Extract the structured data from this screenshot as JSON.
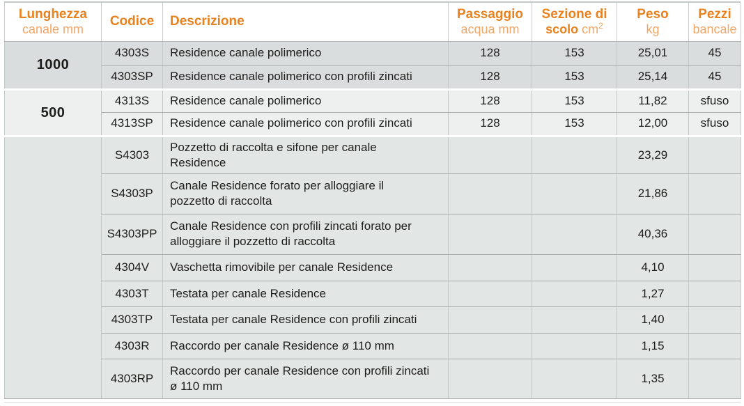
{
  "colors": {
    "accent_bold": "#E8821F",
    "accent_light": "#F0A769",
    "row_dark": "#D9DDDD",
    "row_light": "#EEF0F0",
    "row_bottom": "#E2E6E5",
    "grid_line": "#A9AEAE",
    "text": "#1D1D1B"
  },
  "header": {
    "lunghezza": {
      "title": "Lunghezza",
      "subtitle": "canale mm"
    },
    "codice": {
      "title": "Codice"
    },
    "descrizione": {
      "title": "Descrizione"
    },
    "passaggio": {
      "title": "Passaggio",
      "subtitle": "acqua mm"
    },
    "sezione": {
      "title": "Sezione di",
      "title2": "scolo",
      "unit_base": "cm",
      "unit_exp": "2"
    },
    "peso": {
      "title": "Peso",
      "subtitle": "kg"
    },
    "pezzi": {
      "title": "Pezzi",
      "subtitle": "bancale"
    }
  },
  "rows": [
    {
      "group": "1000",
      "code": "4303S",
      "desc": "Residence canale polimerico",
      "passaggio": "128",
      "sezione": "153",
      "peso": "25,01",
      "pezzi": "45"
    },
    {
      "code": "4303SP",
      "desc": "Residence canale polimerico con profili zincati",
      "passaggio": "128",
      "sezione": "153",
      "peso": "25,14",
      "pezzi": "45"
    },
    {
      "group": "500",
      "code": "4313S",
      "desc": "Residence canale polimerico",
      "passaggio": "128",
      "sezione": "153",
      "peso": "11,82",
      "pezzi": "sfuso"
    },
    {
      "code": "4313SP",
      "desc": "Residence canale polimerico con profili zincati",
      "passaggio": "128",
      "sezione": "153",
      "peso": "12,00",
      "pezzi": "sfuso"
    },
    {
      "group": "",
      "code": "S4303",
      "desc": "Pozzetto di raccolta e sifone per canale Residence",
      "passaggio": "",
      "sezione": "",
      "peso": "23,29",
      "pezzi": ""
    },
    {
      "code": "S4303P",
      "desc": "Canale Residence forato per alloggiare il pozzetto di raccolta",
      "passaggio": "",
      "sezione": "",
      "peso": "21,86",
      "pezzi": ""
    },
    {
      "code": "S4303PP",
      "desc": "Canale Residence con profili zincati forato per alloggiare il pozzetto di raccolta",
      "passaggio": "",
      "sezione": "",
      "peso": "40,36",
      "pezzi": ""
    },
    {
      "code": "4304V",
      "desc": "Vaschetta rimovibile per canale Residence",
      "passaggio": "",
      "sezione": "",
      "peso": "4,10",
      "pezzi": ""
    },
    {
      "code": "4303T",
      "desc": "Testata per canale Residence",
      "passaggio": "",
      "sezione": "",
      "peso": "1,27",
      "pezzi": ""
    },
    {
      "code": "4303TP",
      "desc": "Testata per canale Residence con profili zincati",
      "passaggio": "",
      "sezione": "",
      "peso": "1,40",
      "pezzi": ""
    },
    {
      "code": "4303R",
      "desc": "Raccordo per canale Residence ø 110 mm",
      "passaggio": "",
      "sezione": "",
      "peso": "1,15",
      "pezzi": ""
    },
    {
      "code": "4303RP",
      "desc": "Raccordo per canale Residence con profili zincati ø 110 mm",
      "passaggio": "",
      "sezione": "",
      "peso": "1,35",
      "pezzi": ""
    }
  ]
}
